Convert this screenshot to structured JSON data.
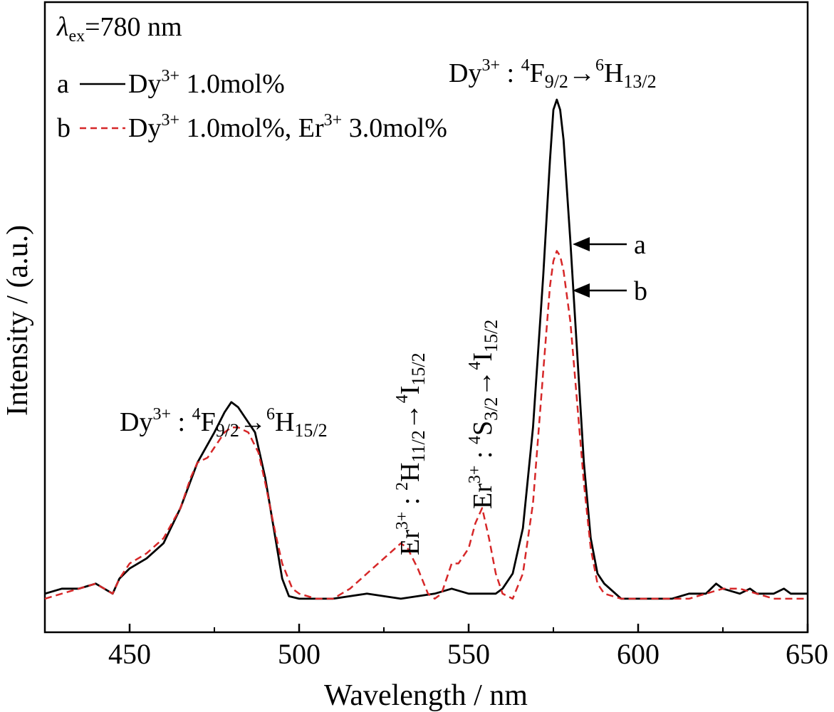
{
  "chart_data": {
    "type": "line",
    "xlabel": "Wavelength / nm",
    "ylabel": "Intensity / (a.u.)",
    "xlim": [
      425,
      650
    ],
    "ylim": [
      0,
      1.1
    ],
    "x_ticks": [
      450,
      500,
      550,
      600,
      650
    ],
    "x_tick_labels": [
      "450",
      "500",
      "550",
      "600",
      "650"
    ],
    "y_ticks_shown": false,
    "grid": false,
    "excitation": {
      "symbol": "λ",
      "subscript": "ex",
      "value": "=780 nm"
    },
    "legend": {
      "placement": "top-left",
      "entries": [
        {
          "key": "a",
          "text": "Dy",
          "sup": "3+",
          "rest": " 1.0mol%"
        },
        {
          "key": "b",
          "text": "Dy",
          "sup": "3+",
          "rest": " 1.0mol%, Er",
          "sup2": "3+",
          "rest2": " 3.0mol%"
        }
      ]
    },
    "series": [
      {
        "name": "a",
        "color": "#000000",
        "dash": "solid",
        "x": [
          425,
          430,
          435,
          440,
          445,
          447,
          450,
          455,
          460,
          465,
          470,
          475,
          478,
          480,
          482,
          485,
          487,
          490,
          493,
          495,
          497,
          500,
          510,
          520,
          530,
          540,
          545,
          550,
          555,
          558,
          560,
          563,
          566,
          569,
          572,
          574,
          575,
          576,
          577,
          578,
          580,
          582,
          584,
          586,
          588,
          590,
          595,
          600,
          605,
          610,
          615,
          620,
          623,
          625,
          630,
          633,
          635,
          640,
          643,
          645,
          650
        ],
        "y": [
          0.02,
          0.03,
          0.03,
          0.04,
          0.02,
          0.05,
          0.07,
          0.09,
          0.12,
          0.19,
          0.28,
          0.34,
          0.38,
          0.4,
          0.39,
          0.36,
          0.34,
          0.25,
          0.13,
          0.05,
          0.015,
          0.01,
          0.01,
          0.02,
          0.01,
          0.02,
          0.03,
          0.02,
          0.02,
          0.02,
          0.03,
          0.06,
          0.15,
          0.35,
          0.65,
          0.88,
          0.98,
          1.0,
          0.98,
          0.92,
          0.72,
          0.5,
          0.28,
          0.13,
          0.06,
          0.04,
          0.01,
          0.01,
          0.01,
          0.01,
          0.02,
          0.02,
          0.04,
          0.03,
          0.02,
          0.03,
          0.02,
          0.02,
          0.03,
          0.02,
          0.02
        ]
      },
      {
        "name": "b",
        "color": "#d62728",
        "dash": "dashed",
        "x": [
          425,
          430,
          435,
          440,
          445,
          447,
          450,
          455,
          460,
          465,
          468,
          470,
          473,
          475,
          478,
          480,
          482,
          485,
          488,
          490,
          493,
          495,
          498,
          500,
          505,
          510,
          515,
          520,
          525,
          530,
          532,
          535,
          538,
          540,
          542,
          545,
          547,
          550,
          552,
          554,
          556,
          558,
          560,
          563,
          566,
          569,
          572,
          574,
          575,
          576,
          577,
          578,
          580,
          582,
          584,
          586,
          588,
          590,
          595,
          600,
          605,
          610,
          615,
          620,
          625,
          630,
          635,
          640,
          645,
          650
        ],
        "y": [
          0.01,
          0.02,
          0.03,
          0.04,
          0.02,
          0.05,
          0.08,
          0.1,
          0.13,
          0.19,
          0.25,
          0.28,
          0.29,
          0.31,
          0.34,
          0.35,
          0.35,
          0.34,
          0.3,
          0.24,
          0.14,
          0.08,
          0.03,
          0.02,
          0.01,
          0.01,
          0.03,
          0.06,
          0.09,
          0.12,
          0.11,
          0.07,
          0.02,
          0.01,
          0.02,
          0.08,
          0.08,
          0.11,
          0.16,
          0.19,
          0.13,
          0.06,
          0.02,
          0.01,
          0.06,
          0.2,
          0.46,
          0.63,
          0.68,
          0.7,
          0.69,
          0.66,
          0.56,
          0.4,
          0.24,
          0.11,
          0.04,
          0.02,
          0.01,
          0.01,
          0.01,
          0.01,
          0.01,
          0.02,
          0.03,
          0.03,
          0.02,
          0.01,
          0.01,
          0.01
        ]
      }
    ],
    "annotations": {
      "peak_main": {
        "ion": "Dy",
        "ion_sup": "3+",
        "sep": " : ",
        "from_sup": "4",
        "from": "F",
        "from_sub": "9/2",
        "arrow": "→",
        "to_sup": "6",
        "to": "H",
        "to_sub": "13/2"
      },
      "peak_blue": {
        "ion": "Dy",
        "ion_sup": "3+",
        "sep": " : ",
        "from_sup": "4",
        "from": "F",
        "from_sub": "9/2",
        "arrow": "→",
        "to_sup": "6",
        "to": "H",
        "to_sub": "15/2"
      },
      "peak_er1": {
        "ion": "Er",
        "ion_sup": "3+",
        "sep": " : ",
        "from_sup": "2",
        "from": "H",
        "from_sub": "11/2",
        "arrow": "→",
        "to_sup": "4",
        "to": "I",
        "to_sub": "15/2"
      },
      "peak_er2": {
        "ion": "Er",
        "ion_sup": "3+",
        "sep": " : ",
        "from_sup": "4",
        "from": "S",
        "from_sub": "3/2",
        "arrow": "→",
        "to_sup": "4",
        "to": "I",
        "to_sub": "15/2"
      },
      "arrow_a": {
        "label": "a"
      },
      "arrow_b": {
        "label": "b"
      }
    }
  }
}
